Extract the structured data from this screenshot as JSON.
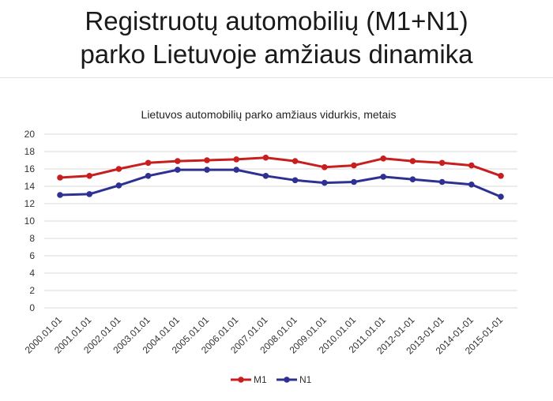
{
  "slide": {
    "title_line1": "Registruotų automobilių (M1+N1)",
    "title_line2": "parko Lietuvoje amžiaus dinamika"
  },
  "chart_data": {
    "type": "line",
    "title": "Lietuvos automobilių parko amžiaus vidurkis, metais",
    "xlabel": "",
    "ylabel": "",
    "categories": [
      "2000.01.01",
      "2001.01.01",
      "2002.01.01",
      "2003.01.01",
      "2004.01.01",
      "2005.01.01",
      "2006.01.01",
      "2007.01.01",
      "2008.01.01",
      "2009.01.01",
      "2010.01.01",
      "2011.01.01",
      "2012-01-01",
      "2013-01-01",
      "2014-01-01",
      "2015-01-01"
    ],
    "yticks": [
      0,
      2,
      4,
      6,
      8,
      10,
      12,
      14,
      16,
      18,
      20
    ],
    "ylim": [
      0,
      20
    ],
    "grid": true,
    "legend": "bottom-center",
    "series": [
      {
        "name": "M1",
        "color": "#c81e1e",
        "values": [
          15.0,
          15.2,
          16.0,
          16.7,
          16.9,
          17.0,
          17.1,
          17.3,
          16.9,
          16.2,
          16.4,
          17.2,
          16.9,
          16.7,
          16.4,
          15.2
        ]
      },
      {
        "name": "N1",
        "color": "#2e3192",
        "values": [
          13.0,
          13.1,
          14.1,
          15.2,
          15.9,
          15.9,
          15.9,
          15.2,
          14.7,
          14.4,
          14.5,
          15.1,
          14.8,
          14.5,
          14.2,
          12.8
        ]
      }
    ]
  }
}
